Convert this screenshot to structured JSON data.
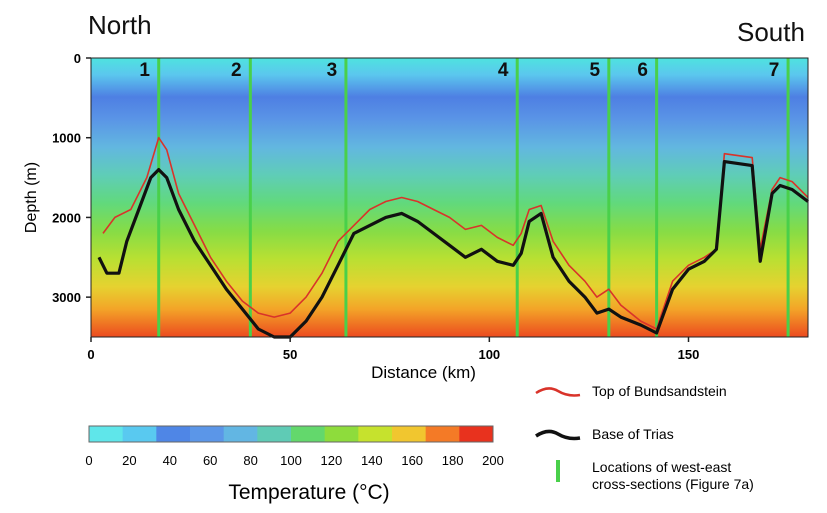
{
  "header": {
    "north": "North",
    "south": "South"
  },
  "chart_data": {
    "type": "heatmap",
    "title": "",
    "xlabel": "Distance (km)",
    "ylabel": "Depth (m)",
    "xlim": [
      0,
      180
    ],
    "ylim": [
      0,
      3500
    ],
    "y_inverted": true,
    "x_ticks": [
      0,
      50,
      100,
      150
    ],
    "y_ticks": [
      0,
      1000,
      2000,
      3000
    ],
    "cross_sections": [
      {
        "label": "1",
        "x": 17
      },
      {
        "label": "2",
        "x": 40
      },
      {
        "label": "3",
        "x": 64
      },
      {
        "label": "4",
        "x": 107
      },
      {
        "label": "5",
        "x": 130
      },
      {
        "label": "6",
        "x": 142
      },
      {
        "label": "7",
        "x": 175
      }
    ],
    "series": [
      {
        "name": "Top of Bundsandstein",
        "color": "#d9332a",
        "points": [
          [
            3,
            2200
          ],
          [
            6,
            2000
          ],
          [
            10,
            1900
          ],
          [
            14,
            1500
          ],
          [
            17,
            1000
          ],
          [
            19,
            1150
          ],
          [
            22,
            1700
          ],
          [
            26,
            2100
          ],
          [
            30,
            2500
          ],
          [
            34,
            2800
          ],
          [
            38,
            3050
          ],
          [
            42,
            3200
          ],
          [
            46,
            3250
          ],
          [
            50,
            3200
          ],
          [
            54,
            3000
          ],
          [
            58,
            2700
          ],
          [
            62,
            2300
          ],
          [
            66,
            2100
          ],
          [
            70,
            1900
          ],
          [
            74,
            1800
          ],
          [
            78,
            1750
          ],
          [
            82,
            1800
          ],
          [
            86,
            1900
          ],
          [
            90,
            2000
          ],
          [
            94,
            2150
          ],
          [
            98,
            2100
          ],
          [
            102,
            2250
          ],
          [
            106,
            2350
          ],
          [
            108,
            2200
          ],
          [
            110,
            1900
          ],
          [
            113,
            1850
          ],
          [
            116,
            2300
          ],
          [
            120,
            2600
          ],
          [
            124,
            2800
          ],
          [
            127,
            3000
          ],
          [
            130,
            2900
          ],
          [
            133,
            3100
          ],
          [
            138,
            3300
          ],
          [
            142,
            3400
          ],
          [
            146,
            2800
          ],
          [
            150,
            2600
          ],
          [
            154,
            2500
          ],
          [
            157,
            2400
          ],
          [
            159,
            1200
          ],
          [
            166,
            1250
          ],
          [
            168,
            2400
          ],
          [
            171,
            1650
          ],
          [
            173,
            1500
          ],
          [
            176,
            1550
          ],
          [
            180,
            1750
          ]
        ]
      },
      {
        "name": "Base of Trias",
        "color": "#111111",
        "points": [
          [
            2,
            2500
          ],
          [
            4,
            2700
          ],
          [
            7,
            2700
          ],
          [
            9,
            2300
          ],
          [
            12,
            1900
          ],
          [
            15,
            1500
          ],
          [
            17,
            1400
          ],
          [
            19,
            1500
          ],
          [
            22,
            1900
          ],
          [
            26,
            2300
          ],
          [
            30,
            2600
          ],
          [
            34,
            2900
          ],
          [
            38,
            3150
          ],
          [
            42,
            3400
          ],
          [
            46,
            3500
          ],
          [
            50,
            3500
          ],
          [
            54,
            3300
          ],
          [
            58,
            3000
          ],
          [
            62,
            2600
          ],
          [
            66,
            2200
          ],
          [
            70,
            2100
          ],
          [
            74,
            2000
          ],
          [
            78,
            1950
          ],
          [
            82,
            2050
          ],
          [
            86,
            2200
          ],
          [
            90,
            2350
          ],
          [
            94,
            2500
          ],
          [
            98,
            2400
          ],
          [
            102,
            2550
          ],
          [
            106,
            2600
          ],
          [
            108,
            2450
          ],
          [
            110,
            2050
          ],
          [
            113,
            1950
          ],
          [
            116,
            2500
          ],
          [
            120,
            2800
          ],
          [
            124,
            3000
          ],
          [
            127,
            3200
          ],
          [
            130,
            3150
          ],
          [
            133,
            3250
          ],
          [
            138,
            3350
          ],
          [
            142,
            3450
          ],
          [
            146,
            2900
          ],
          [
            150,
            2650
          ],
          [
            154,
            2550
          ],
          [
            157,
            2400
          ],
          [
            159,
            1300
          ],
          [
            166,
            1350
          ],
          [
            168,
            2550
          ],
          [
            171,
            1700
          ],
          [
            173,
            1600
          ],
          [
            176,
            1650
          ],
          [
            180,
            1800
          ]
        ]
      }
    ],
    "colorbar": {
      "title": "Temperature   (°C)",
      "ticks": [
        0,
        20,
        40,
        60,
        80,
        100,
        120,
        140,
        160,
        180,
        200
      ],
      "colors": [
        "#5fe6ea",
        "#59c9f0",
        "#4f86e6",
        "#5b96e8",
        "#62b6e3",
        "#5fcbb5",
        "#63d86c",
        "#8edc3c",
        "#c6e22d",
        "#f1c62f",
        "#f47a26",
        "#e8321e"
      ]
    },
    "legend": [
      {
        "label": "Top of Bundsandstein",
        "color": "#d9332a",
        "kind": "line"
      },
      {
        "label": "Base of Trias",
        "color": "#111111",
        "kind": "line"
      },
      {
        "label": "Locations of west-east cross-sections (Figure 7a)",
        "color": "#49d04a",
        "kind": "bar"
      }
    ],
    "grid": false
  }
}
